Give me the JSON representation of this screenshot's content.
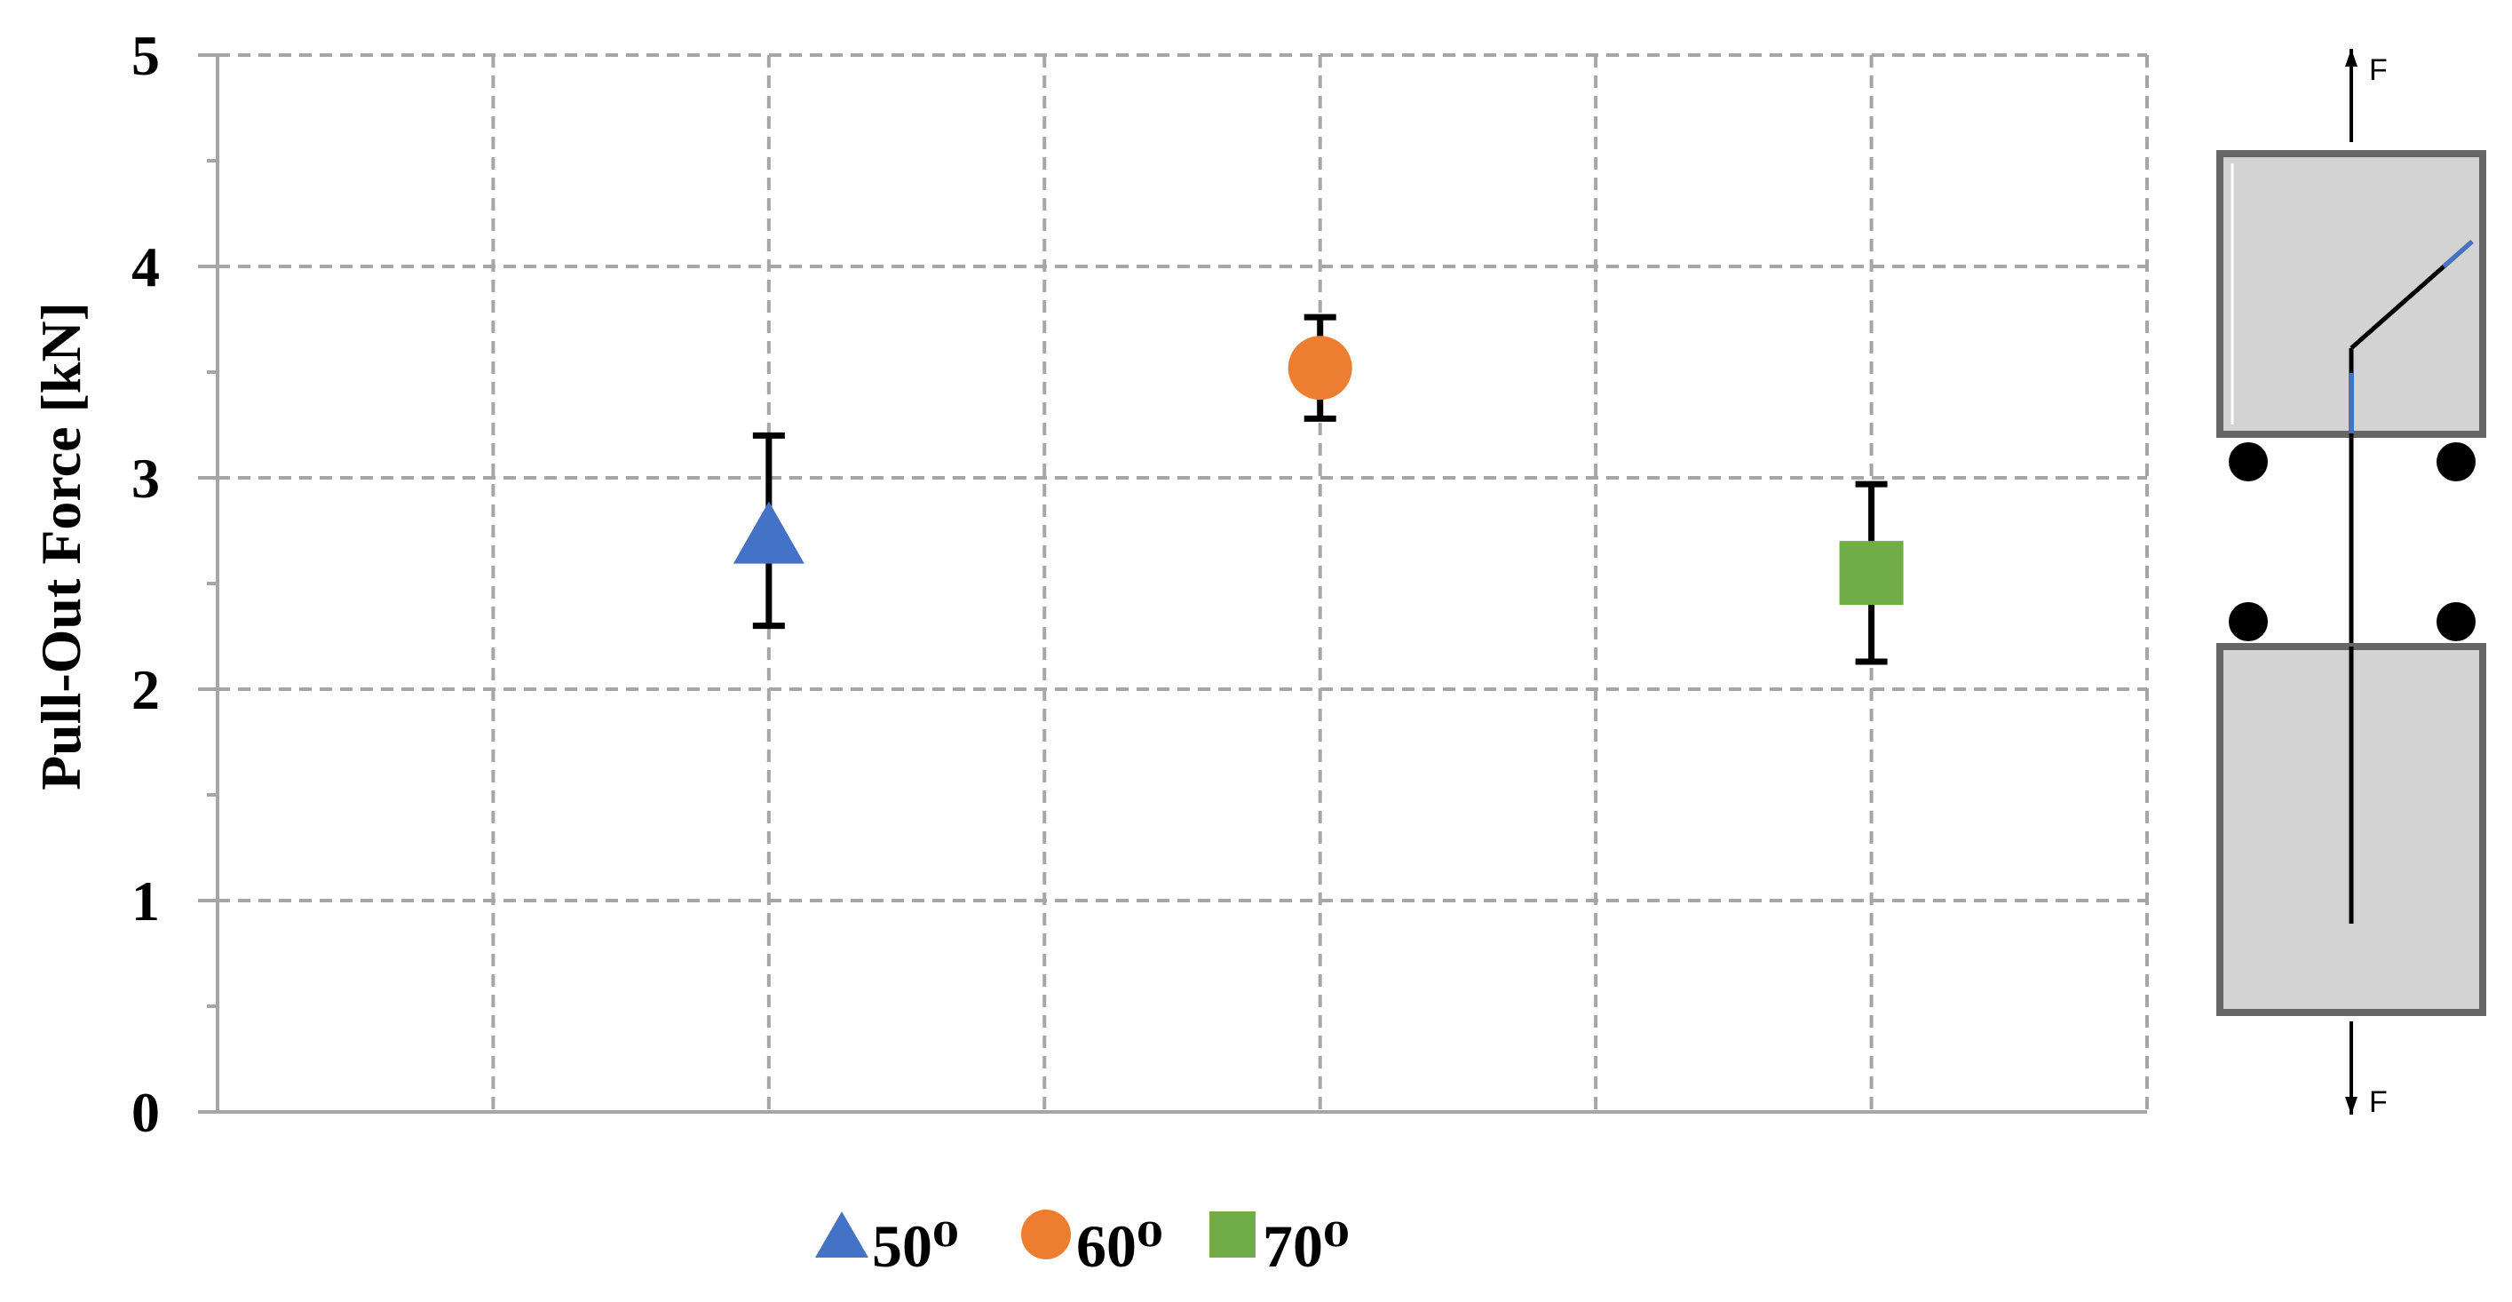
{
  "chart_data": {
    "type": "scatter",
    "title": "",
    "xlabel": "",
    "ylabel": "Pull-Out Force [kN]",
    "ylim": [
      0,
      5
    ],
    "y_ticks": [
      "0",
      "1",
      "2",
      "3",
      "4",
      "5"
    ],
    "grid": true,
    "legend_position": "bottom-center",
    "series": [
      {
        "name": "50⁰",
        "marker": "triangle",
        "color": "#4472C4",
        "y": 2.72,
        "err_low": 2.3,
        "err_high": 3.2
      },
      {
        "name": "60⁰",
        "marker": "circle",
        "color": "#ED7D31",
        "y": 3.52,
        "err_low": 3.28,
        "err_high": 3.76
      },
      {
        "name": "70⁰",
        "marker": "square",
        "color": "#70AD47",
        "y": 2.55,
        "err_low": 2.13,
        "err_high": 2.97
      }
    ]
  },
  "diagram": {
    "force_top": "F",
    "force_bottom": "F"
  }
}
